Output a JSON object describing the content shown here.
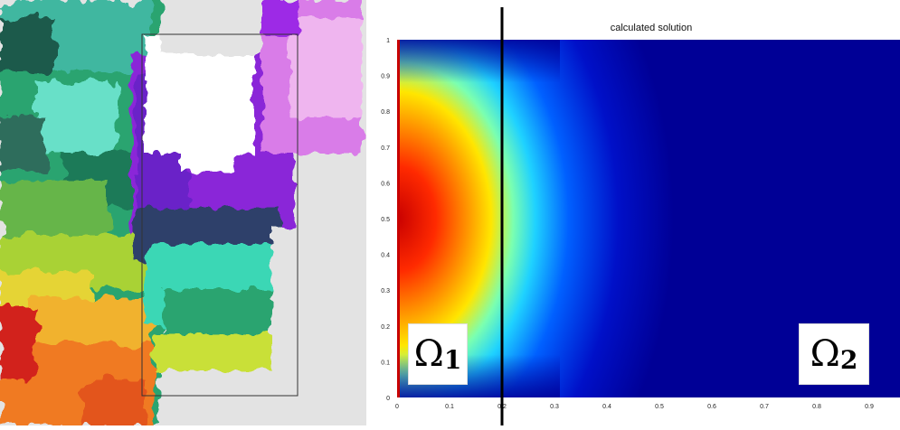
{
  "left_map": {
    "colormap": [
      "#1f5a4b",
      "#3fd4b8",
      "#2aa46f",
      "#66b54a",
      "#e5d436",
      "#f07a23",
      "#d2201a"
    ],
    "land_color": "#e3e3e3",
    "shelf_colors": [
      "#6a20c8",
      "#9d2ae6",
      "#d97ce8",
      "#efb5ef"
    ]
  },
  "solution_plot": {
    "title": "calculated solution",
    "x_ticks": [
      "0",
      "0.1",
      "0.2",
      "0.3",
      "0.4",
      "0.5",
      "0.6",
      "0.7",
      "0.8",
      "0.9"
    ],
    "y_ticks": [
      "0",
      "0.1",
      "0.2",
      "0.3",
      "0.4",
      "0.5",
      "0.6",
      "0.7",
      "0.8",
      "0.9",
      "1"
    ],
    "interface_x": 0.2,
    "domain_labels": {
      "omega1": {
        "symbol": "Ω",
        "subscript": "1"
      },
      "omega2": {
        "symbol": "Ω",
        "subscript": "2"
      }
    },
    "colors": {
      "background": "#000096",
      "hot": "#c80000",
      "interface_line": "#000000"
    }
  }
}
